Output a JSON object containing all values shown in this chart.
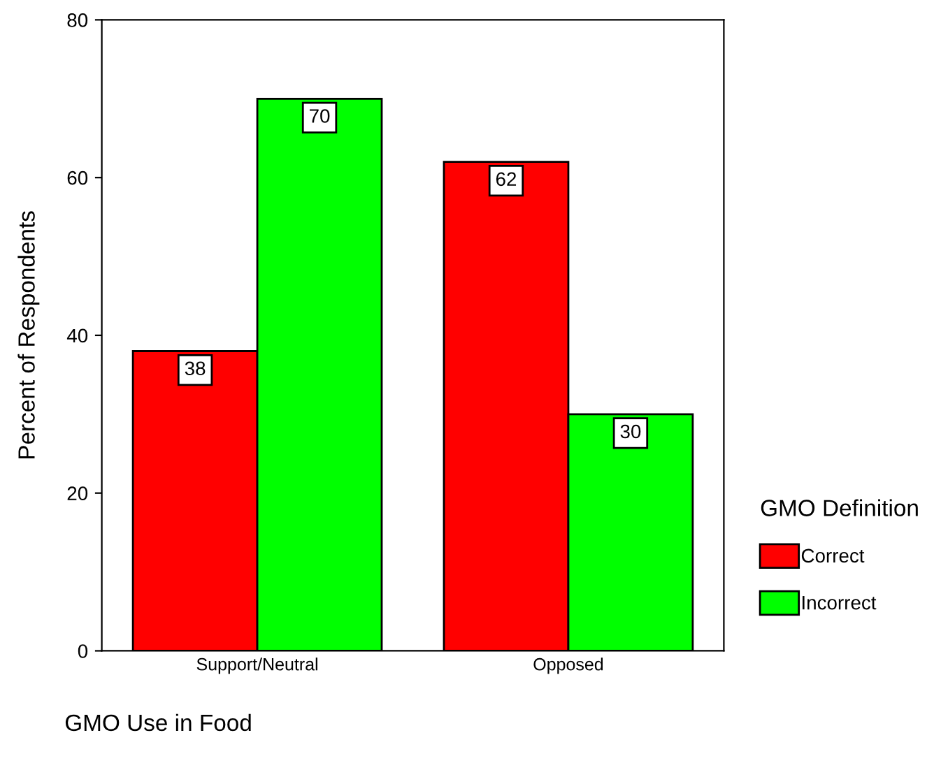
{
  "chart_data": {
    "type": "bar",
    "xlabel": "GMO Use in Food",
    "ylabel": "Percent of Respondents",
    "legend_title": "GMO Definition",
    "categories": [
      "Support/Neutral",
      "Opposed"
    ],
    "series": [
      {
        "name": "Correct",
        "color": "#ff0000",
        "values": [
          38,
          62
        ]
      },
      {
        "name": "Incorrect",
        "color": "#00ff00",
        "values": [
          70,
          30
        ]
      }
    ],
    "ylim": [
      0,
      80
    ],
    "yticks": [
      0,
      20,
      40,
      60,
      80
    ],
    "data_labels": true,
    "grid": false,
    "legend": "right"
  }
}
